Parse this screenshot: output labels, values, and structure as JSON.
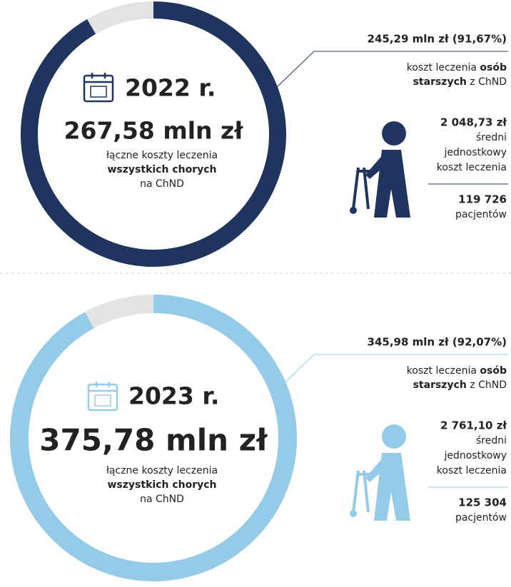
{
  "panels": [
    {
      "year": "2022 r.",
      "total": "267,58 mln zł",
      "caption_lines": [
        "łączne koszty leczenia",
        "wszystkich chorych",
        "na ChND"
      ],
      "elderly_cost": "245,29 mln zł (91,67%)",
      "share": 91.67,
      "color": "#1f3560",
      "desc_lines": [
        [
          "koszt leczenia ",
          "osób"
        ],
        [
          "starszych",
          " z ChND"
        ]
      ],
      "unit_cost": "2 048,73 zł",
      "unit_cost_lines": [
        "średni",
        "jednostkowy",
        "koszt leczenia"
      ],
      "patients": "119 726",
      "patients_label": "pacjentów"
    },
    {
      "year": "2023 r.",
      "total": "375,78 mln zł",
      "caption_lines": [
        "łączne koszty leczenia",
        "wszystkich chorych",
        "na ChND"
      ],
      "elderly_cost": "345,98 mln zł (92,07%)",
      "share": 92.07,
      "color": "#93cbe8",
      "desc_lines": [
        [
          "koszt leczenia ",
          "osób"
        ],
        [
          "starszych",
          " z ChND"
        ]
      ],
      "unit_cost": "2 761,10 zł",
      "unit_cost_lines": [
        "średni",
        "jednostkowy",
        "koszt leczenia"
      ],
      "patients": "125 304",
      "patients_label": "pacjentów"
    }
  ]
}
